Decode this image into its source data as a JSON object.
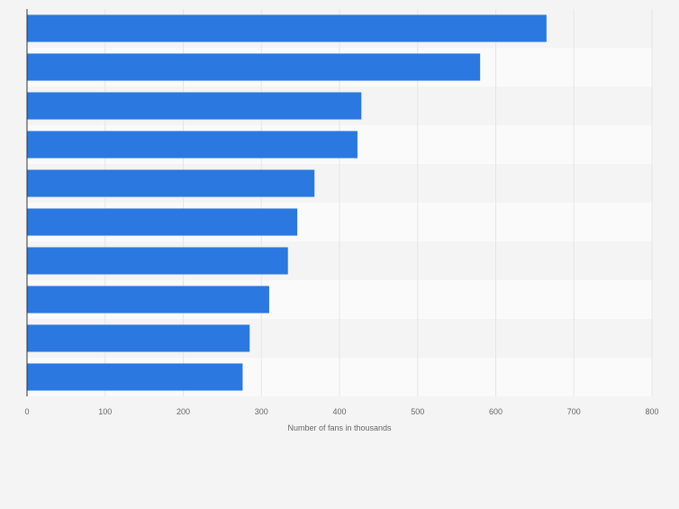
{
  "chart_data": {
    "type": "bar",
    "orientation": "horizontal",
    "categories": [
      "",
      "",
      "",
      "",
      "",
      "",
      "",
      "",
      "",
      ""
    ],
    "values": [
      665,
      580,
      428,
      423,
      368,
      346,
      334,
      310,
      285,
      276
    ],
    "xlabel": "Number of fans in thousands",
    "ylabel": "",
    "xlim": [
      0,
      800
    ],
    "xticks": [
      0,
      100,
      200,
      300,
      400,
      500,
      600,
      700,
      800
    ],
    "xtick_labels": [
      "0",
      "100",
      "200",
      "300",
      "400",
      "500",
      "600",
      "700",
      "800"
    ],
    "grid": "vertical",
    "legend": "none",
    "bar_color": "#2a78e0",
    "band_colors": [
      "#f4f4f4",
      "#fafafa"
    ],
    "grid_color": "#e6e6e6",
    "axis_color": "#333333"
  }
}
